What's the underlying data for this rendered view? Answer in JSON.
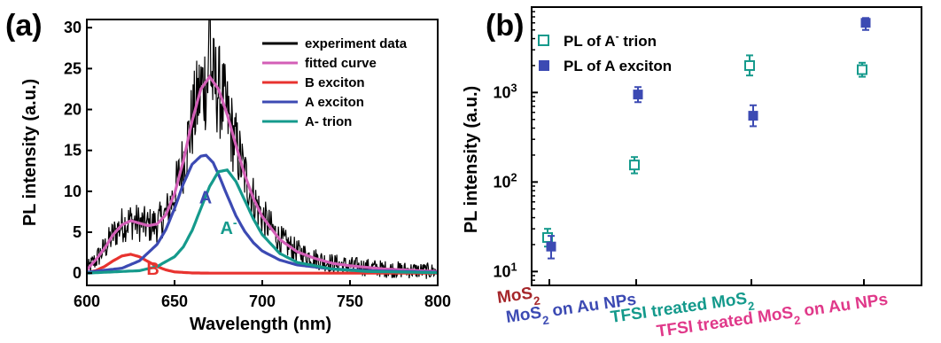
{
  "chart_data": [
    {
      "panel": "(a)",
      "type": "line",
      "xlabel": "Wavelength (nm)",
      "ylabel": "PL intensity (a.u.)",
      "xlim": [
        600,
        800
      ],
      "ylim": [
        -1.5,
        31
      ],
      "xticks": [
        600,
        650,
        700,
        750,
        800
      ],
      "yticks": [
        0,
        5,
        10,
        15,
        20,
        25,
        30
      ],
      "legend_position": "top-right",
      "series": [
        {
          "name": "experiment data",
          "color": "#000000",
          "kind": "noisy",
          "x": [
            600,
            605,
            610,
            615,
            620,
            625,
            630,
            635,
            640,
            645,
            650,
            655,
            660,
            665,
            670,
            675,
            680,
            685,
            690,
            695,
            700,
            710,
            720,
            730,
            740,
            750,
            760,
            770,
            780,
            790,
            800
          ],
          "y": [
            0.4,
            1.6,
            3.0,
            4.7,
            5.9,
            6.4,
            6.1,
            5.8,
            6.0,
            7.1,
            9.7,
            13.7,
            18.6,
            22.5,
            24.0,
            22.5,
            19.4,
            15.6,
            12.0,
            9.1,
            6.9,
            4.1,
            2.6,
            1.8,
            1.2,
            0.9,
            0.7,
            0.5,
            0.4,
            0.3,
            0.2
          ]
        },
        {
          "name": "fitted curve",
          "color": "#d35fb7",
          "x": [
            600,
            605,
            610,
            615,
            620,
            625,
            630,
            635,
            640,
            645,
            650,
            655,
            660,
            665,
            670,
            675,
            680,
            685,
            690,
            695,
            700,
            710,
            720,
            730,
            740,
            750,
            760,
            770,
            780,
            790,
            800
          ],
          "y": [
            0.4,
            1.6,
            3.0,
            4.7,
            5.9,
            6.4,
            6.1,
            5.8,
            6.0,
            7.1,
            9.7,
            13.7,
            18.6,
            22.5,
            24.0,
            22.5,
            19.4,
            15.6,
            12.0,
            9.1,
            6.9,
            4.1,
            2.6,
            1.8,
            1.2,
            0.9,
            0.7,
            0.5,
            0.4,
            0.3,
            0.2
          ]
        },
        {
          "name": "B exciton",
          "color": "#e8332f",
          "x": [
            600,
            605,
            610,
            615,
            620,
            625,
            630,
            635,
            640,
            645,
            650,
            660,
            670,
            680,
            700,
            750,
            800
          ],
          "y": [
            0.05,
            0.3,
            0.8,
            1.5,
            2.1,
            2.3,
            2.0,
            1.4,
            0.8,
            0.4,
            0.15,
            0.02,
            0,
            0,
            0,
            0,
            0
          ]
        },
        {
          "name": "A exciton",
          "color": "#3c4ab3",
          "x": [
            600,
            620,
            630,
            640,
            645,
            650,
            655,
            660,
            665,
            668,
            672,
            675,
            680,
            685,
            690,
            695,
            700,
            710,
            720,
            740,
            760,
            800
          ],
          "y": [
            0.1,
            0.6,
            1.5,
            3.5,
            5.3,
            7.9,
            10.9,
            13.3,
            14.3,
            14.4,
            13.5,
            12.1,
            9.5,
            7.0,
            5.1,
            3.7,
            2.7,
            1.6,
            1.0,
            0.5,
            0.3,
            0.1
          ]
        },
        {
          "name": "A- trion",
          "color": "#159a8c",
          "x": [
            600,
            630,
            640,
            650,
            655,
            660,
            665,
            670,
            675,
            680,
            685,
            690,
            695,
            700,
            710,
            720,
            740,
            760,
            800
          ],
          "y": [
            0,
            0.3,
            0.8,
            2.0,
            3.2,
            5.2,
            7.9,
            10.6,
            12.4,
            12.6,
            11.2,
            8.9,
            6.6,
            4.7,
            2.4,
            1.3,
            0.5,
            0.2,
            0.05
          ]
        }
      ],
      "annotations": [
        {
          "text": "A",
          "x": 664,
          "y": 8.5,
          "color": "#3c4ab3"
        },
        {
          "text": "A",
          "sup": "-",
          "x": 676,
          "y": 4.8,
          "color": "#159a8c"
        },
        {
          "text": "B",
          "x": 634,
          "y": -0.2,
          "color": "#e8332f"
        }
      ]
    },
    {
      "panel": "(b)",
      "type": "scatter",
      "ylabel": "PL intensity (a.u.)",
      "yscale": "log",
      "ylim": [
        7,
        9000
      ],
      "yticks": [
        10,
        100,
        1000
      ],
      "legend_position": "top-left",
      "categories": [
        {
          "parts": [
            [
              "MoS",
              ""
            ],
            [
              "2",
              "sub"
            ]
          ],
          "color": "#a5262a"
        },
        {
          "parts": [
            [
              "MoS",
              ""
            ],
            [
              "2",
              "sub"
            ],
            [
              " on Au NPs",
              ""
            ]
          ],
          "color": "#3c4ab3"
        },
        {
          "parts": [
            [
              "TFSI treated MoS",
              ""
            ],
            [
              "2",
              "sub"
            ]
          ],
          "color": "#159a8c"
        },
        {
          "parts": [
            [
              "TFSI treated MoS",
              ""
            ],
            [
              "2",
              "sub"
            ],
            [
              " on Au NPs",
              ""
            ]
          ],
          "color": "#e0398a"
        }
      ],
      "series": [
        {
          "legend_parts": [
            [
              "PL of A",
              ""
            ],
            [
              "-",
              "sup"
            ],
            [
              " trion",
              ""
            ]
          ],
          "color": "#159a8c",
          "marker": "open-square",
          "values": [
            24,
            155,
            2000,
            1800
          ],
          "err_low": [
            19,
            125,
            1550,
            1500
          ],
          "err_high": [
            30,
            190,
            2600,
            2150
          ]
        },
        {
          "legend_parts": [
            [
              "PL of A exciton",
              ""
            ]
          ],
          "color": "#3c4ab3",
          "marker": "filled-square",
          "values": [
            19,
            950,
            550,
            6000
          ],
          "err_low": [
            14,
            780,
            420,
            5000
          ],
          "err_high": [
            25,
            1150,
            720,
            6800
          ]
        }
      ]
    }
  ]
}
